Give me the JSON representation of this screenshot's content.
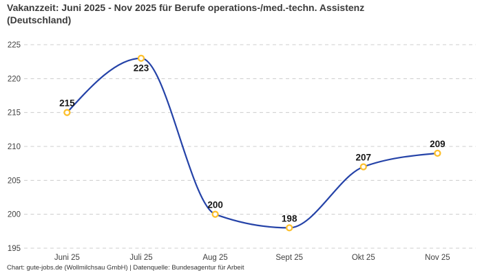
{
  "header": {
    "title": "Vakanzzeit: Juni 2025 - Nov 2025 für Berufe operations-/med.-techn. Assistenz\n(Deutschland)"
  },
  "footer": {
    "credit": "Chart: gute-jobs.de (Wollmilchsau GmbH) | Datenquelle: Bundesagentur für Arbeit"
  },
  "chart_data": {
    "type": "line",
    "title": "Vakanzzeit: Juni 2025 - Nov 2025 für Berufe operations-/med.-techn. Assistenz (Deutschland)",
    "categories": [
      "Juni 25",
      "Juli 25",
      "Aug 25",
      "Sept 25",
      "Okt 25",
      "Nov 25"
    ],
    "values": [
      215,
      223,
      200,
      198,
      207,
      209
    ],
    "point_label_positions": [
      "above",
      "below",
      "above",
      "above",
      "above",
      "above"
    ],
    "ylim": [
      195,
      225
    ],
    "y_ticks": [
      195,
      200,
      205,
      210,
      215,
      220,
      225
    ],
    "xlabel": "",
    "ylabel": "",
    "legend": "none",
    "grid": "horizontal-dashed",
    "curve": "monotone",
    "line_color": "#2543a8",
    "marker_fill": "#ffffff",
    "marker_stroke": "#fdc02d",
    "grid_color": "#cccccc",
    "tick_label_color": "#414141",
    "data_label_color": "#161616"
  }
}
